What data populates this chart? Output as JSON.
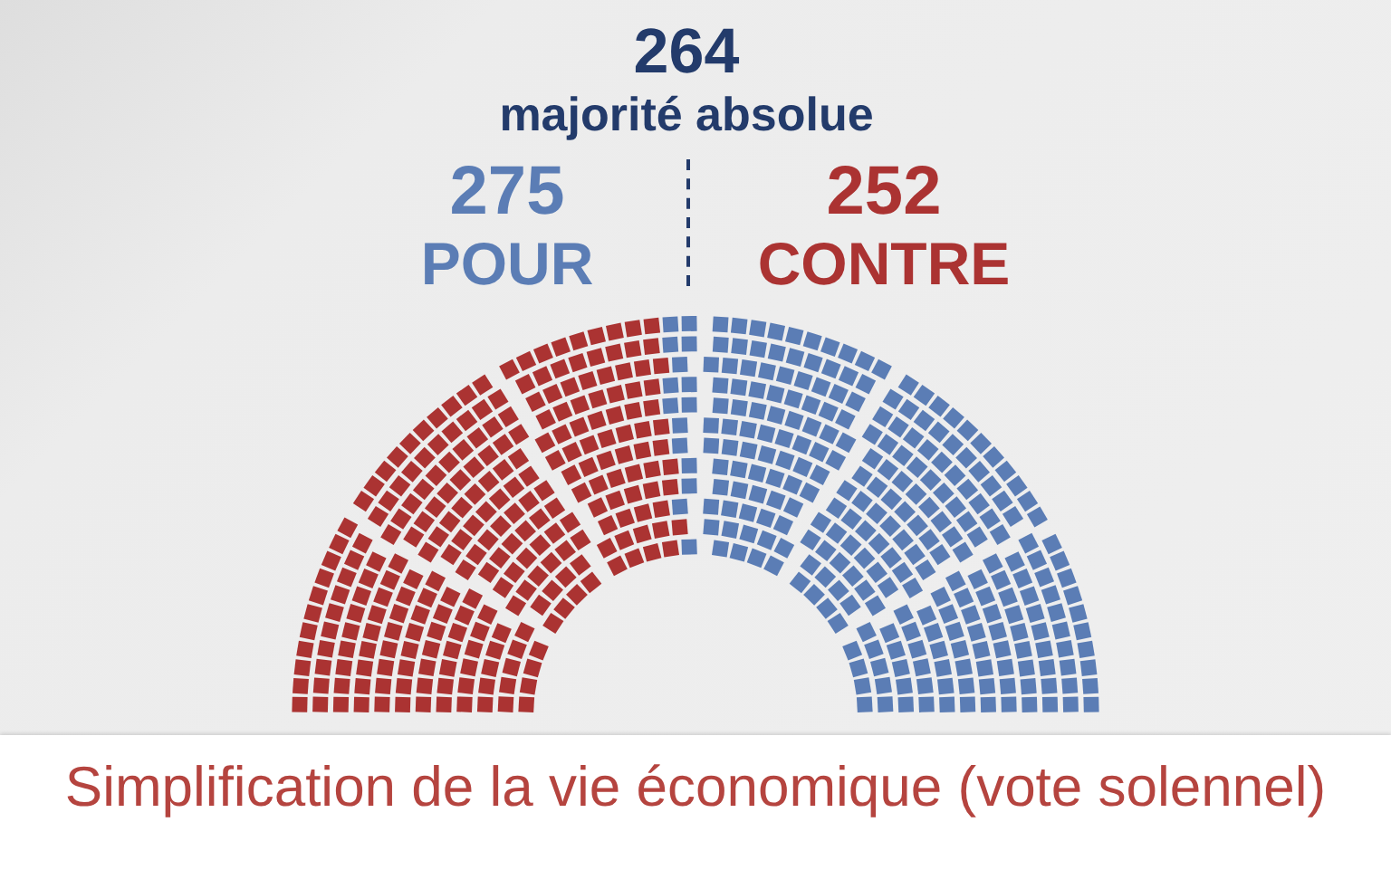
{
  "chart_data": {
    "type": "other",
    "title": "Simplification de la vie économique (vote solennel)",
    "categories": [
      "POUR",
      "CONTRE"
    ],
    "values": [
      275,
      252
    ],
    "colors": [
      "#5b7db5",
      "#ab3332"
    ],
    "data_labels": true,
    "annotations": [
      "264",
      "majorité absolue"
    ]
  }
}
